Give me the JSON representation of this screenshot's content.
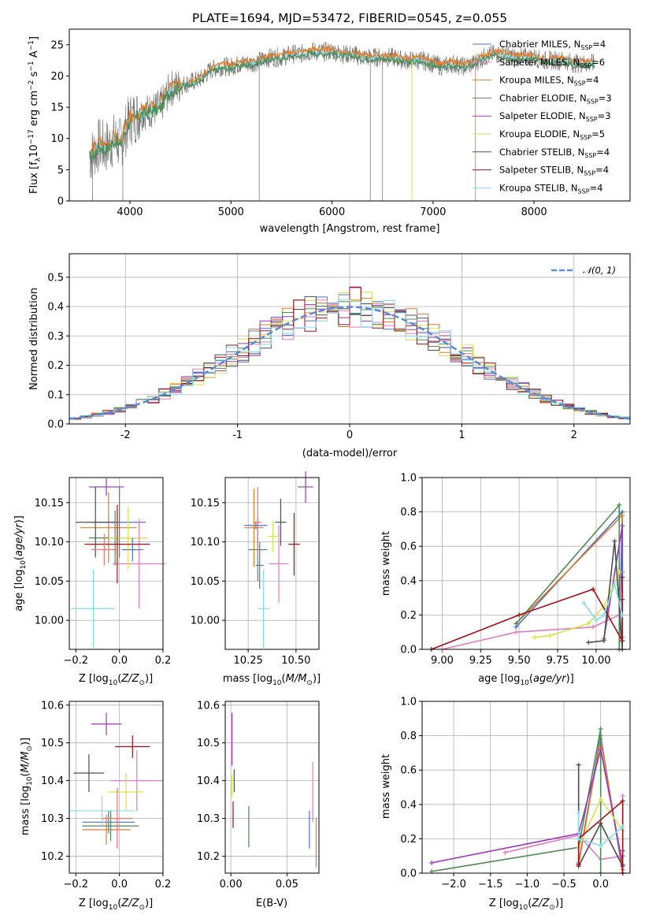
{
  "figure": {
    "title": "PLATE=1694, MJD=53472, FIBERID=0545, z=0.055"
  },
  "colors": [
    "#4a72c4",
    "#e07bc0",
    "#e07b2e",
    "#4e8a57",
    "#9b35b5",
    "#d6e34a",
    "#4d4d4d",
    "#a50f15",
    "#80dfe6",
    "#ff6b6b"
  ],
  "chart_data": [
    {
      "id": "spectrum",
      "type": "line",
      "xlabel": "wavelength [Angstrom, rest frame]",
      "ylabel": "Flux [f_λ 10^-17 erg cm^-2 s^-1 A^-1]",
      "xlim": [
        3400,
        8950
      ],
      "ylim": [
        0,
        27.5
      ],
      "xticks": [
        4000,
        5000,
        6000,
        7000,
        8000
      ],
      "yticks": [
        0,
        5,
        10,
        15,
        20,
        25
      ],
      "grid": false,
      "legend_position": "top-right",
      "observed_continuum": {
        "x": [
          3600,
          3650,
          3700,
          3750,
          3800,
          3850,
          3900,
          3950,
          4000,
          4100,
          4200,
          4300,
          4400,
          4500,
          4600,
          4700,
          4800,
          4900,
          5000,
          5100,
          5200,
          5300,
          5400,
          5500,
          5600,
          5700,
          5800,
          5900,
          6000,
          6100,
          6200,
          6300,
          6400,
          6500,
          6600,
          6700,
          6800,
          6900,
          7000,
          7100,
          7200,
          7300,
          7400,
          7500,
          7600,
          7700,
          7800,
          7900,
          8000,
          8100,
          8200,
          8300,
          8400,
          8500,
          8600
        ],
        "y": [
          7,
          8,
          9,
          8.5,
          9,
          10,
          9,
          11,
          13,
          14,
          14.5,
          15,
          18,
          18.5,
          19,
          19.5,
          21,
          21.5,
          21.5,
          22,
          22,
          22.5,
          23,
          23,
          23.5,
          23.5,
          24,
          23.8,
          24,
          23.5,
          23.5,
          23,
          23,
          23,
          23,
          22.5,
          22.5,
          22.5,
          22,
          21.5,
          22,
          21.5,
          22,
          23,
          23.5,
          23.5,
          23,
          23,
          23,
          22.5,
          22.5,
          22.5,
          22,
          22,
          22
        ]
      },
      "series_names": [
        "Chabrier MILES, N_SSP=4",
        "Salpeter MILES, N_SSP=6",
        "Kroupa MILES, N_SSP=4",
        "Chabrier ELODIE, N_SSP=3",
        "Salpeter ELODIE, N_SSP=3",
        "Kroupa ELODIE, N_SSP=5",
        "Chabrier STELIB, N_SSP=4",
        "Salpeter STELIB, N_SSP=4",
        "Kroupa STELIB, N_SSP=4"
      ],
      "legend_labels": [
        {
          "base": "Chabrier MILES, N",
          "sub": "SSP",
          "tail": "=4"
        },
        {
          "base": "Salpeter MILES, N",
          "sub": "SSP",
          "tail": "=6"
        },
        {
          "base": "Kroupa MILES, N",
          "sub": "SSP",
          "tail": "=4"
        },
        {
          "base": "Chabrier ELODIE, N",
          "sub": "SSP",
          "tail": "=3"
        },
        {
          "base": "Salpeter ELODIE, N",
          "sub": "SSP",
          "tail": "=3"
        },
        {
          "base": "Kroupa ELODIE, N",
          "sub": "SSP",
          "tail": "=5"
        },
        {
          "base": "Chabrier STELIB, N",
          "sub": "SSP",
          "tail": "=4"
        },
        {
          "base": "Salpeter STELIB, N",
          "sub": "SSP",
          "tail": "=4"
        },
        {
          "base": "Kroupa STELIB, N",
          "sub": "SSP",
          "tail": "=4"
        }
      ],
      "legend_colors": [
        "#4a72c4",
        "#e07bc0",
        "#e07b2e",
        "#4e8a57",
        "#9b35b5",
        "#d6e34a",
        "#4d4d4d",
        "#a50f15",
        "#80dfe6"
      ],
      "spikes_x": [
        3630,
        3930,
        5280,
        6380,
        6500,
        6790,
        7420
      ]
    },
    {
      "id": "residual-histogram",
      "type": "histogram",
      "xlabel": "(data-model)/error",
      "ylabel": "Normed distribution",
      "xlim": [
        -2.5,
        2.5
      ],
      "ylim": [
        0,
        0.58
      ],
      "xticks": [
        -2,
        -1,
        0,
        1,
        2
      ],
      "yticks": [
        0.0,
        0.1,
        0.2,
        0.3,
        0.4,
        0.5
      ],
      "grid": true,
      "legend_position": "top-right",
      "legend_label": "N(0,1)",
      "bin_width": 0.1,
      "bin_start": -2.5,
      "gaussian": {
        "mean": 0,
        "sigma": 1
      }
    },
    {
      "id": "age-vs-z",
      "type": "errorbar",
      "xlabel": "Z [log10(Z/Z_sun)]",
      "ylabel": "age [log10(age/yr)]",
      "xlim": [
        -0.23,
        0.2
      ],
      "ylim": [
        9.963,
        10.182
      ],
      "xticks": [
        -0.2,
        0.0,
        0.2
      ],
      "yticks": [
        10.0,
        10.05,
        10.1,
        10.15
      ],
      "grid": true,
      "points": [
        {
          "x": 0.0,
          "y": 10.125,
          "xerr": 0.12,
          "yerr": 0.045
        },
        {
          "x": 0.09,
          "y": 10.072,
          "xerr": 0.12,
          "yerr": 0.057
        },
        {
          "x": -0.05,
          "y": 10.118,
          "xerr": 0.13,
          "yerr": 0.045
        },
        {
          "x": -0.02,
          "y": 10.105,
          "xerr": 0.12,
          "yerr": 0.035
        },
        {
          "x": -0.06,
          "y": 10.17,
          "xerr": 0.08,
          "yerr": 0.011
        },
        {
          "x": 0.04,
          "y": 10.105,
          "xerr": 0.09,
          "yerr": 0.04
        },
        {
          "x": -0.11,
          "y": 10.125,
          "xerr": 0.09,
          "yerr": 0.045
        },
        {
          "x": -0.01,
          "y": 10.097,
          "xerr": 0.15,
          "yerr": 0.05
        },
        {
          "x": -0.12,
          "y": 10.015,
          "xerr": 0.1,
          "yerr": 0.05
        },
        {
          "x": -0.07,
          "y": 10.09,
          "xerr": 0.06,
          "yerr": 0.02
        },
        {
          "x": 0.06,
          "y": 10.09,
          "xerr": 0.05,
          "yerr": 0.015
        }
      ]
    },
    {
      "id": "age-vs-mass",
      "type": "errorbar",
      "xlabel": "mass [log10(M/M_sun)]",
      "ylabel": "",
      "xlim": [
        10.13,
        10.62
      ],
      "ylim": [
        9.963,
        10.182
      ],
      "xticks": [
        10.25,
        10.5
      ],
      "yticks": [
        10.0,
        10.05,
        10.1,
        10.15
      ],
      "grid": true,
      "points": [
        {
          "x": 10.29,
          "y": 10.121,
          "xerr": 0.06,
          "yerr": 0.005
        },
        {
          "x": 10.41,
          "y": 10.072,
          "xerr": 0.05,
          "yerr": 0.05
        },
        {
          "x": 10.28,
          "y": 10.118,
          "xerr": 0.05,
          "yerr": 0.05
        },
        {
          "x": 10.3,
          "y": 10.09,
          "xerr": 0.05,
          "yerr": 0.04
        },
        {
          "x": 10.55,
          "y": 10.17,
          "xerr": 0.04,
          "yerr": 0.02
        },
        {
          "x": 10.38,
          "y": 10.107,
          "xerr": 0.03,
          "yerr": 0.02
        },
        {
          "x": 10.42,
          "y": 10.125,
          "xerr": 0.03,
          "yerr": 0.03
        },
        {
          "x": 10.49,
          "y": 10.097,
          "xerr": 0.03,
          "yerr": 0.04
        },
        {
          "x": 10.33,
          "y": 10.015,
          "xerr": 0.03,
          "yerr": 0.05
        },
        {
          "x": 10.3,
          "y": 10.125,
          "xerr": 0.02,
          "yerr": 0.045
        },
        {
          "x": 10.31,
          "y": 10.07,
          "xerr": 0.02,
          "yerr": 0.03
        }
      ]
    },
    {
      "id": "mass-weight-vs-age",
      "type": "line",
      "xlabel": "age [log10(age/yr)]",
      "ylabel": "mass weight",
      "xlim": [
        8.87,
        10.22
      ],
      "ylim": [
        0,
        1.0
      ],
      "xticks": [
        9.0,
        9.25,
        9.5,
        9.75,
        10.0
      ],
      "yticks": [
        0.0,
        0.2,
        0.4,
        0.6,
        0.8,
        1.0
      ],
      "grid": true,
      "series": [
        {
          "name": "Chabrier MILES",
          "x": [
            9.48,
            10.17,
            10.15
          ],
          "y": [
            0.13,
            0.8,
            0.0
          ]
        },
        {
          "name": "Salpeter MILES",
          "x": [
            9.0,
            9.48,
            9.98,
            10.15,
            10.17,
            10.17
          ],
          "y": [
            0.0,
            0.1,
            0.13,
            0.2,
            0.45,
            0.0
          ]
        },
        {
          "name": "Kroupa MILES",
          "x": [
            9.48,
            10.17,
            10.17
          ],
          "y": [
            0.15,
            0.78,
            0.07
          ]
        },
        {
          "name": "Chabrier ELODIE",
          "x": [
            9.48,
            10.15,
            10.15
          ],
          "y": [
            0.15,
            0.84,
            0.0
          ]
        },
        {
          "name": "Salpeter ELODIE",
          "x": [
            10.05,
            10.17,
            10.17
          ],
          "y": [
            0.06,
            0.72,
            0.2
          ]
        },
        {
          "name": "Kroupa ELODIE",
          "x": [
            9.6,
            9.7,
            9.95,
            10.05,
            10.15
          ],
          "y": [
            0.07,
            0.08,
            0.15,
            0.25,
            0.45
          ]
        },
        {
          "name": "Chabrier STELIB",
          "x": [
            9.95,
            10.05,
            10.12,
            10.17,
            10.17
          ],
          "y": [
            0.04,
            0.05,
            0.63,
            0.0,
            0.29
          ]
        },
        {
          "name": "Salpeter STELIB",
          "x": [
            8.93,
            9.5,
            9.98,
            10.17,
            10.17
          ],
          "y": [
            0.0,
            0.2,
            0.35,
            0.05,
            0.42
          ]
        },
        {
          "name": "Kroupa STELIB",
          "x": [
            9.92,
            10.0,
            10.05,
            10.12,
            10.17
          ],
          "y": [
            0.27,
            0.17,
            0.2,
            0.38,
            0.2
          ]
        }
      ]
    },
    {
      "id": "mass-vs-z",
      "type": "errorbar",
      "xlabel": "Z [log10(Z/Z_sun)]",
      "ylabel": "mass [log10(M/M_sun)]",
      "xlim": [
        -0.23,
        0.2
      ],
      "ylim": [
        10.155,
        10.61
      ],
      "xticks": [
        -0.2,
        0.0,
        0.2
      ],
      "yticks": [
        10.2,
        10.3,
        10.4,
        10.5,
        10.6
      ],
      "grid": true,
      "points": [
        {
          "x": -0.05,
          "y": 10.29,
          "xerr": 0.12,
          "yerr": 0.03
        },
        {
          "x": 0.08,
          "y": 10.4,
          "xerr": 0.12,
          "yerr": 0.08
        },
        {
          "x": -0.06,
          "y": 10.27,
          "xerr": 0.11,
          "yerr": 0.04
        },
        {
          "x": -0.04,
          "y": 10.28,
          "xerr": 0.13,
          "yerr": 0.04
        },
        {
          "x": -0.06,
          "y": 10.55,
          "xerr": 0.07,
          "yerr": 0.03
        },
        {
          "x": 0.03,
          "y": 10.37,
          "xerr": 0.08,
          "yerr": 0.05
        },
        {
          "x": -0.14,
          "y": 10.42,
          "xerr": 0.07,
          "yerr": 0.05
        },
        {
          "x": 0.06,
          "y": 10.49,
          "xerr": 0.08,
          "yerr": 0.03
        },
        {
          "x": -0.08,
          "y": 10.32,
          "xerr": 0.15,
          "yerr": 0.04
        },
        {
          "x": -0.01,
          "y": 10.3,
          "xerr": 0.07,
          "yerr": 0.08
        }
      ]
    },
    {
      "id": "mass-vs-ebv",
      "type": "errorbar",
      "xlabel": "E(B-V)",
      "ylabel": "",
      "xlim": [
        -0.005,
        0.0785
      ],
      "ylim": [
        10.155,
        10.61
      ],
      "xticks": [
        0.0,
        0.05
      ],
      "yticks": [
        10.2,
        10.3,
        10.4,
        10.5,
        10.6
      ],
      "grid": true,
      "points": [
        {
          "x": 0.07,
          "y": 10.27,
          "xerr": 0.0,
          "yerr": 0.05
        },
        {
          "x": 0.073,
          "y": 10.37,
          "xerr": 0.0,
          "yerr": 0.08
        },
        {
          "x": 0.076,
          "y": 10.235,
          "xerr": 0.0,
          "yerr": 0.065
        },
        {
          "x": 0.016,
          "y": 10.278,
          "xerr": 0.0,
          "yerr": 0.055
        },
        {
          "x": 0.001,
          "y": 10.51,
          "xerr": 0.0,
          "yerr": 0.07
        },
        {
          "x": 0.001,
          "y": 10.385,
          "xerr": 0.0,
          "yerr": 0.03
        },
        {
          "x": 0.003,
          "y": 10.4,
          "xerr": 0.0,
          "yerr": 0.03
        },
        {
          "x": 0.002,
          "y": 10.31,
          "xerr": 0.0,
          "yerr": 0.035
        }
      ]
    },
    {
      "id": "mass-weight-vs-z",
      "type": "line",
      "xlabel": "Z [log10(Z/Z_sun)]",
      "ylabel": "mass weight",
      "xlim": [
        -2.43,
        0.4
      ],
      "ylim": [
        0,
        1.0
      ],
      "xticks": [
        -2.0,
        -1.5,
        -1.0,
        -0.5,
        0.0
      ],
      "yticks": [
        0.0,
        0.2,
        0.4,
        0.6,
        0.8,
        1.0
      ],
      "grid": true,
      "series": [
        {
          "name": "Chabrier MILES",
          "x": [
            -0.3,
            0.0,
            0.3,
            0.3
          ],
          "y": [
            0.06,
            0.8,
            0.0,
            0.13
          ]
        },
        {
          "name": "Salpeter MILES",
          "x": [
            -1.3,
            -0.3,
            0.0,
            0.3,
            0.3
          ],
          "y": [
            0.12,
            0.22,
            0.08,
            0.1,
            0.45
          ]
        },
        {
          "name": "Kroupa MILES",
          "x": [
            -0.3,
            0.0,
            0.3,
            0.3
          ],
          "y": [
            0.05,
            0.78,
            0.02,
            0.1
          ]
        },
        {
          "name": "Chabrier ELODIE",
          "x": [
            -2.3,
            -0.3,
            0.0,
            0.0
          ],
          "y": [
            0.01,
            0.15,
            0.84,
            0.0
          ]
        },
        {
          "name": "Salpeter ELODIE",
          "x": [
            -2.3,
            -0.3,
            0.0,
            0.3
          ],
          "y": [
            0.06,
            0.23,
            0.72,
            0.05
          ]
        },
        {
          "name": "Kroupa ELODIE",
          "x": [
            -0.3,
            0.0,
            0.3
          ],
          "y": [
            0.15,
            0.43,
            0.25
          ]
        },
        {
          "name": "Chabrier STELIB",
          "x": [
            -0.3,
            -0.3,
            0.0,
            0.3
          ],
          "y": [
            0.63,
            0.04,
            0.29,
            0.04
          ]
        },
        {
          "name": "Salpeter STELIB",
          "x": [
            -0.3,
            -0.3,
            0.3,
            0.3
          ],
          "y": [
            0.05,
            0.2,
            0.42,
            0.0
          ]
        },
        {
          "name": "Kroupa STELIB",
          "x": [
            -0.3,
            -0.3,
            0.0,
            0.3
          ],
          "y": [
            0.35,
            0.2,
            0.16,
            0.27
          ]
        }
      ]
    }
  ]
}
